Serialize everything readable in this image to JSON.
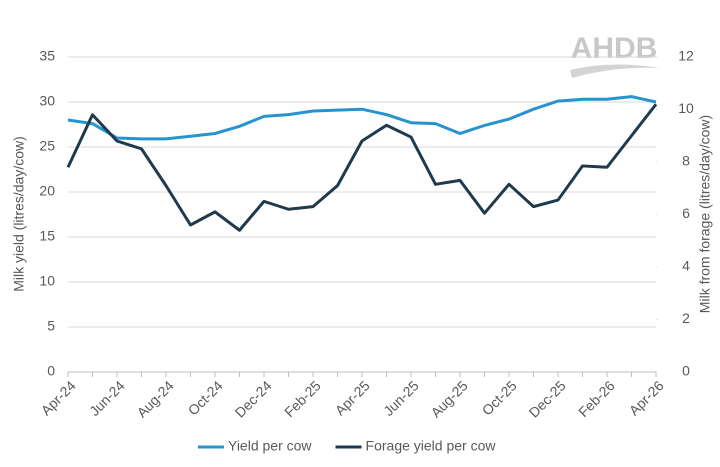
{
  "chart_data": {
    "type": "line",
    "logo": "AHDB",
    "y_label": "Milk yield (litres/day/cow)",
    "y2_label": "Milk from forage (litres/day/cow)",
    "categories": [
      "Apr-24",
      null,
      "Jun-24",
      null,
      "Aug-24",
      null,
      "Oct-24",
      null,
      "Dec-24",
      null,
      "Feb-25",
      null,
      "Apr-25",
      null,
      "Jun-25",
      null,
      "Aug-25",
      null,
      "Oct-25",
      null,
      "Dec-25",
      null,
      "Feb-26",
      null,
      "Apr-26"
    ],
    "series": [
      {
        "name": "Yield per cow",
        "color": "#2694cf",
        "values": [
          28.0,
          27.6,
          26.0,
          25.9,
          25.9,
          26.2,
          26.5,
          27.3,
          28.4,
          28.6,
          29.0,
          29.1,
          29.2,
          28.6,
          27.7,
          27.6,
          26.5,
          27.4,
          28.1,
          29.2,
          30.1,
          30.3,
          30.3,
          30.6,
          30.0
        ]
      },
      {
        "name": "Forage yield per cow",
        "color": "#1e3a4c",
        "axis": "y2",
        "values": [
          7.8,
          9.8,
          8.8,
          8.5,
          7.1,
          5.6,
          6.1,
          5.4,
          6.5,
          6.2,
          6.3,
          7.1,
          8.8,
          9.4,
          8.95,
          7.15,
          7.3,
          6.05,
          7.15,
          6.3,
          6.55,
          7.85,
          7.8,
          9.0,
          10.2
        ]
      }
    ],
    "ylim": [
      0,
      35
    ],
    "yticks": [
      0,
      5,
      10,
      15,
      20,
      25,
      30,
      35
    ],
    "y2lim": [
      0,
      12
    ],
    "y2ticks": [
      0,
      2,
      4,
      6,
      8,
      10,
      12
    ],
    "grid": true,
    "legend": "bottom"
  }
}
